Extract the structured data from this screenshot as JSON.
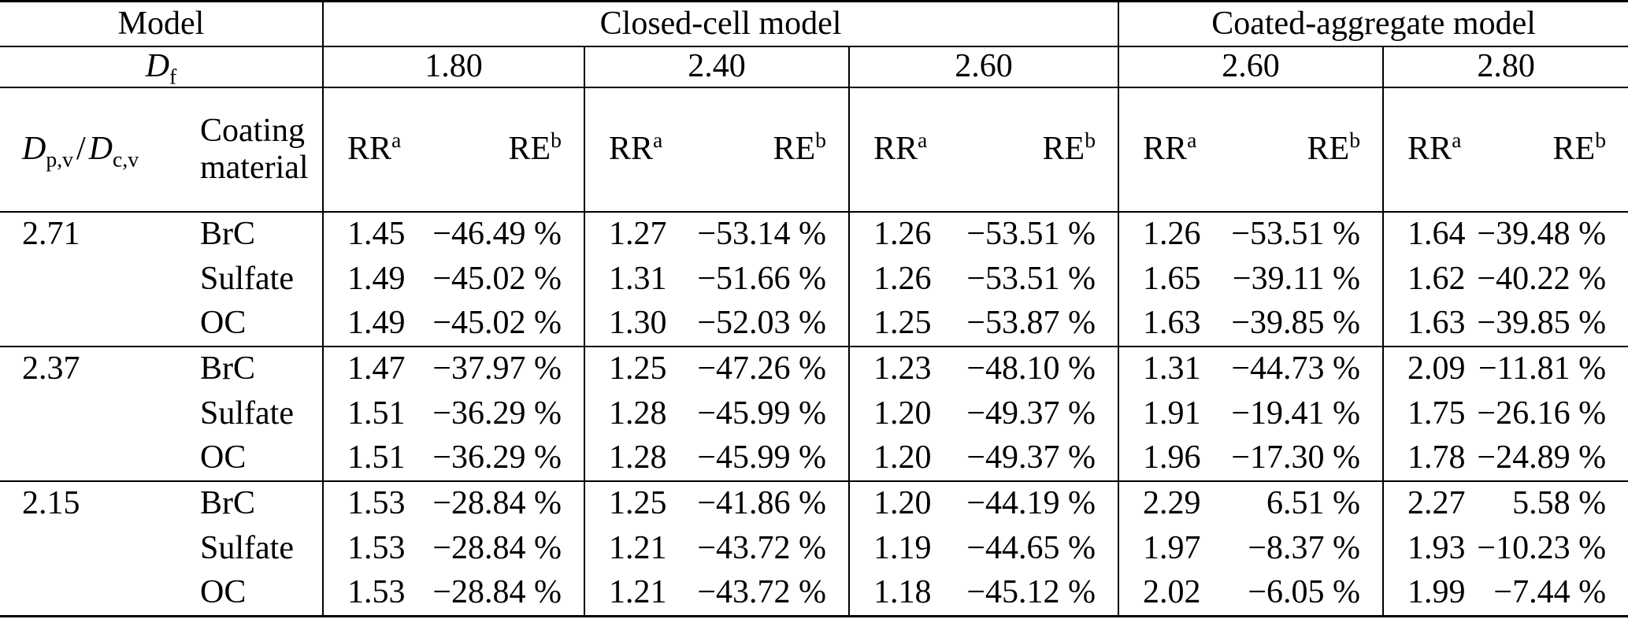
{
  "table": {
    "header": {
      "model": "Model",
      "closed_cell": "Closed-cell model",
      "coated_aggregate": "Coated-aggregate model",
      "fractal_dimension": {
        "symbol": "D",
        "subscript": "f",
        "values": [
          "1.80",
          "2.40",
          "2.60",
          "2.60",
          "2.80"
        ]
      },
      "diameter_ratio": {
        "symbol1": "D",
        "subscript1": "p,v",
        "slash": "/",
        "symbol2": "D",
        "subscript2": "c,v"
      },
      "coating_material": {
        "line1": "Coating",
        "line2": "material"
      },
      "rr": {
        "label": "RR",
        "superscript": "a"
      },
      "re": {
        "label": "RE",
        "superscript": "b"
      }
    },
    "groups": [
      {
        "ratio": "2.71",
        "rows": [
          {
            "coating": "BrC",
            "cells": [
              {
                "rr": "1.45",
                "re": "−46.49 %"
              },
              {
                "rr": "1.27",
                "re": "−53.14 %"
              },
              {
                "rr": "1.26",
                "re": "−53.51 %"
              },
              {
                "rr": "1.26",
                "re": "−53.51 %"
              },
              {
                "rr": "1.64",
                "re": "−39.48 %"
              }
            ]
          },
          {
            "coating": "Sulfate",
            "cells": [
              {
                "rr": "1.49",
                "re": "−45.02 %"
              },
              {
                "rr": "1.31",
                "re": "−51.66 %"
              },
              {
                "rr": "1.26",
                "re": "−53.51 %"
              },
              {
                "rr": "1.65",
                "re": "−39.11 %"
              },
              {
                "rr": "1.62",
                "re": "−40.22 %"
              }
            ]
          },
          {
            "coating": "OC",
            "cells": [
              {
                "rr": "1.49",
                "re": "−45.02 %"
              },
              {
                "rr": "1.30",
                "re": "−52.03 %"
              },
              {
                "rr": "1.25",
                "re": "−53.87 %"
              },
              {
                "rr": "1.63",
                "re": "−39.85 %"
              },
              {
                "rr": "1.63",
                "re": "−39.85 %"
              }
            ]
          }
        ]
      },
      {
        "ratio": "2.37",
        "rows": [
          {
            "coating": "BrC",
            "cells": [
              {
                "rr": "1.47",
                "re": "−37.97 %"
              },
              {
                "rr": "1.25",
                "re": "−47.26 %"
              },
              {
                "rr": "1.23",
                "re": "−48.10 %"
              },
              {
                "rr": "1.31",
                "re": "−44.73 %"
              },
              {
                "rr": "2.09",
                "re": "−11.81 %"
              }
            ]
          },
          {
            "coating": "Sulfate",
            "cells": [
              {
                "rr": "1.51",
                "re": "−36.29 %"
              },
              {
                "rr": "1.28",
                "re": "−45.99 %"
              },
              {
                "rr": "1.20",
                "re": "−49.37 %"
              },
              {
                "rr": "1.91",
                "re": "−19.41 %"
              },
              {
                "rr": "1.75",
                "re": "−26.16 %"
              }
            ]
          },
          {
            "coating": "OC",
            "cells": [
              {
                "rr": "1.51",
                "re": "−36.29 %"
              },
              {
                "rr": "1.28",
                "re": "−45.99 %"
              },
              {
                "rr": "1.20",
                "re": "−49.37 %"
              },
              {
                "rr": "1.96",
                "re": "−17.30 %"
              },
              {
                "rr": "1.78",
                "re": "−24.89 %"
              }
            ]
          }
        ]
      },
      {
        "ratio": "2.15",
        "rows": [
          {
            "coating": "BrC",
            "cells": [
              {
                "rr": "1.53",
                "re": "−28.84 %"
              },
              {
                "rr": "1.25",
                "re": "−41.86 %"
              },
              {
                "rr": "1.20",
                "re": "−44.19 %"
              },
              {
                "rr": "2.29",
                "re": "6.51 %"
              },
              {
                "rr": "2.27",
                "re": "5.58 %"
              }
            ]
          },
          {
            "coating": "Sulfate",
            "cells": [
              {
                "rr": "1.53",
                "re": "−28.84 %"
              },
              {
                "rr": "1.21",
                "re": "−43.72 %"
              },
              {
                "rr": "1.19",
                "re": "−44.65 %"
              },
              {
                "rr": "1.97",
                "re": "−8.37 %"
              },
              {
                "rr": "1.93",
                "re": "−10.23 %"
              }
            ]
          },
          {
            "coating": "OC",
            "cells": [
              {
                "rr": "1.53",
                "re": "−28.84 %"
              },
              {
                "rr": "1.21",
                "re": "−43.72 %"
              },
              {
                "rr": "1.18",
                "re": "−45.12 %"
              },
              {
                "rr": "2.02",
                "re": "−6.05 %"
              },
              {
                "rr": "1.99",
                "re": "−7.44 %"
              }
            ]
          }
        ]
      }
    ]
  }
}
